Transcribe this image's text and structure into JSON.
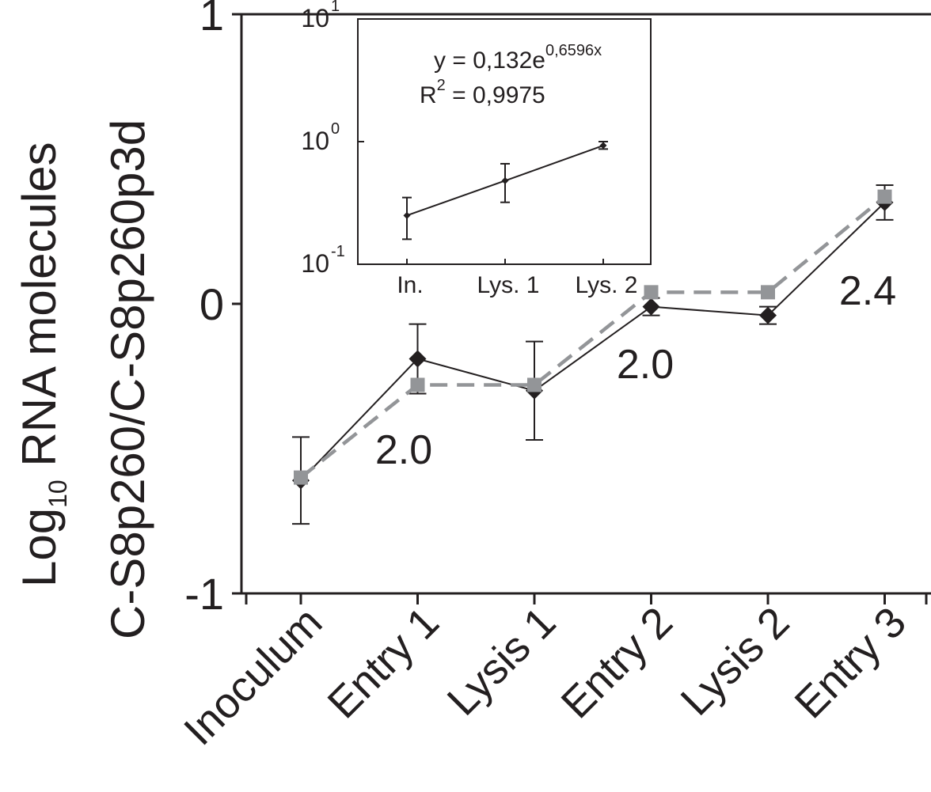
{
  "chart_data": [
    {
      "type": "line",
      "title": "",
      "ylabel_prefix": "Log",
      "ylabel_subscript": "10",
      "ylabel_rest": " RNA molecules",
      "ylabel_line2": "C-S8p260/C-S8p260p3d",
      "xlabel": "",
      "ylim": [
        -1,
        1
      ],
      "yticks": [
        "1",
        "0",
        "-1"
      ],
      "ytick_values": [
        1,
        0,
        -1
      ],
      "categories": [
        "Inoculum",
        "Entry 1",
        "Lysis 1",
        "Entry 2",
        "Lysis 2",
        "Entry 3"
      ],
      "series": [
        {
          "marker": "diamond",
          "line_style": "solid",
          "color": "#231f20",
          "values": [
            -0.61,
            -0.19,
            -0.3,
            -0.01,
            -0.04,
            0.35
          ],
          "error": [
            0.15,
            0.12,
            0.17,
            0.03,
            0.03,
            0.06
          ]
        },
        {
          "marker": "square",
          "line_style": "dashed",
          "color": "#939598",
          "values": [
            -0.6,
            -0.28,
            -0.28,
            0.04,
            0.04,
            0.37
          ],
          "error": null
        }
      ],
      "annotations": [
        {
          "text": "2.0",
          "between": "Entry 1 – Lysis 1"
        },
        {
          "text": "2.0",
          "between": "Entry 2 – Lysis 2"
        },
        {
          "text": "2.4",
          "between": "Lysis 2 – Entry 3"
        }
      ]
    },
    {
      "type": "line",
      "title": "",
      "yscale": "log",
      "ylim": [
        0.1,
        10
      ],
      "ytick_base": "10",
      "ytick_exponents": [
        "1",
        "0",
        "-1"
      ],
      "ytick_values": [
        10,
        1,
        0.1
      ],
      "categories": [
        "In.",
        "Lys. 1",
        "Lys. 2"
      ],
      "series": [
        {
          "marker": "diamond",
          "line_style": "solid",
          "color": "#231f20",
          "values": [
            0.25,
            0.48,
            0.93
          ],
          "error_low": [
            0.16,
            0.32,
            0.87
          ],
          "error_high": [
            0.35,
            0.66,
            1.0
          ]
        }
      ],
      "fit_equation": {
        "prefix": "y = 0,132e",
        "exponent": "0,6596x"
      },
      "r_squared": {
        "prefix": "R",
        "superscript": "2",
        "rest": " = 0,9975"
      }
    }
  ]
}
